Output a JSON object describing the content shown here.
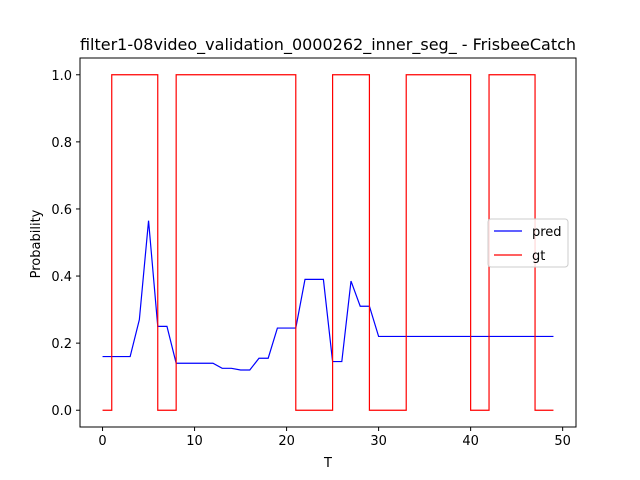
{
  "chart_data": {
    "type": "line",
    "title": "filter1-08video_validation_0000262_inner_seg_ - FrisbeeCatch",
    "xlabel": "T",
    "ylabel": "Probability",
    "xlim": [
      -2.45,
      51.45
    ],
    "ylim": [
      -0.05,
      1.05
    ],
    "xticks": [
      0,
      10,
      20,
      30,
      40,
      50
    ],
    "yticks": [
      0.0,
      0.2,
      0.4,
      0.6,
      0.8,
      1.0
    ],
    "xtick_labels": [
      "0",
      "10",
      "20",
      "30",
      "40",
      "50"
    ],
    "ytick_labels": [
      "0.0",
      "0.2",
      "0.4",
      "0.6",
      "0.8",
      "1.0"
    ],
    "grid": false,
    "legend_position": "center-right",
    "series": [
      {
        "name": "pred",
        "color": "#0000ff",
        "step": false,
        "x": [
          0,
          1,
          2,
          3,
          4,
          5,
          6,
          7,
          8,
          9,
          10,
          11,
          12,
          13,
          14,
          15,
          16,
          17,
          18,
          19,
          20,
          21,
          22,
          23,
          24,
          25,
          26,
          27,
          28,
          29,
          30,
          31,
          32,
          33,
          34,
          35,
          36,
          37,
          38,
          39,
          40,
          41,
          42,
          43,
          44,
          45,
          46,
          47,
          48,
          49
        ],
        "y": [
          0.16,
          0.16,
          0.16,
          0.16,
          0.27,
          0.565,
          0.25,
          0.25,
          0.14,
          0.14,
          0.14,
          0.14,
          0.14,
          0.125,
          0.125,
          0.12,
          0.12,
          0.155,
          0.155,
          0.245,
          0.245,
          0.245,
          0.39,
          0.39,
          0.39,
          0.145,
          0.145,
          0.385,
          0.31,
          0.31,
          0.22,
          0.22,
          0.22,
          0.22,
          0.22,
          0.22,
          0.22,
          0.22,
          0.22,
          0.22,
          0.22,
          0.22,
          0.22,
          0.22,
          0.22,
          0.22,
          0.22,
          0.22,
          0.22,
          0.22
        ]
      },
      {
        "name": "gt",
        "color": "#ff0000",
        "step": true,
        "x": [
          0,
          1,
          2,
          3,
          4,
          5,
          6,
          7,
          8,
          9,
          10,
          11,
          12,
          13,
          14,
          15,
          16,
          17,
          18,
          19,
          20,
          21,
          22,
          23,
          24,
          25,
          26,
          27,
          28,
          29,
          30,
          31,
          32,
          33,
          34,
          35,
          36,
          37,
          38,
          39,
          40,
          41,
          42,
          43,
          44,
          45,
          46,
          47,
          48,
          49
        ],
        "y": [
          0,
          1,
          1,
          1,
          1,
          1,
          0,
          0,
          1,
          1,
          1,
          1,
          1,
          1,
          1,
          1,
          1,
          1,
          1,
          1,
          1,
          0,
          0,
          0,
          0,
          1,
          1,
          1,
          1,
          0,
          0,
          0,
          0,
          1,
          1,
          1,
          1,
          1,
          1,
          1,
          0,
          0,
          1,
          1,
          1,
          1,
          1,
          0,
          0,
          0
        ]
      }
    ]
  }
}
